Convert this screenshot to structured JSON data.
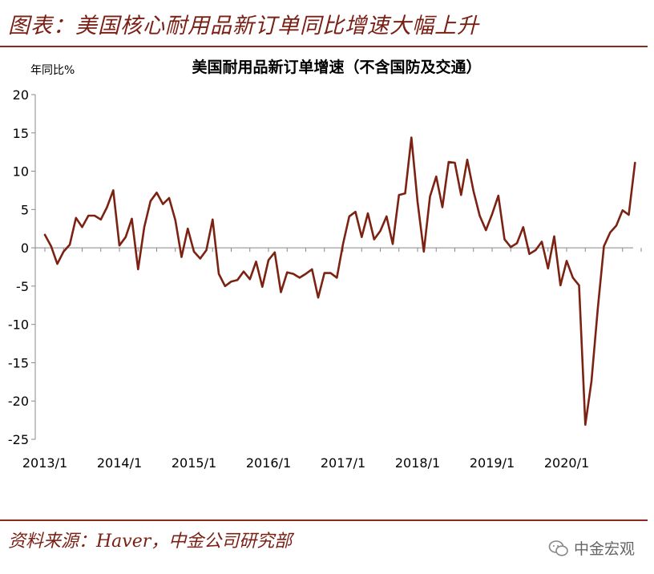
{
  "figure_title": "图表：美国核心耐用品新订单同比增速大幅上升",
  "source": "资料来源：Haver，中金公司研究部",
  "watermark": "中金宏观",
  "colors": {
    "line": "#7b2213",
    "accent": "#8b2a1e"
  },
  "chart_data": {
    "type": "line",
    "title": "美国耐用品新订单增速（不含国防及交通）",
    "ylabel": "年同比%",
    "xlabel": "",
    "ylim": [
      -25,
      20
    ],
    "yticks": [
      20,
      15,
      10,
      5,
      0,
      -5,
      -10,
      -15,
      -20,
      -25
    ],
    "xtick_labels": [
      "2013/1",
      "2014/1",
      "2015/1",
      "2016/1",
      "2017/1",
      "2018/1",
      "2019/1",
      "2020/1"
    ],
    "grid": false,
    "series": [
      {
        "start": "2013/1",
        "frequency": "monthly",
        "values": [
          1.7,
          0.2,
          -2.1,
          -0.5,
          0.4,
          3.9,
          2.7,
          4.2,
          4.2,
          3.7,
          5.3,
          7.5,
          0.3,
          1.4,
          3.8,
          -2.8,
          2.7,
          6.1,
          7.2,
          5.7,
          6.5,
          3.6,
          -1.2,
          2.5,
          -0.5,
          -1.4,
          -0.3,
          3.7,
          -3.4,
          -5.0,
          -4.4,
          -4.2,
          -3.1,
          -4.1,
          -1.8,
          -5.1,
          -1.6,
          -0.6,
          -5.8,
          -3.2,
          -3.4,
          -3.9,
          -3.4,
          -2.8,
          -6.5,
          -3.3,
          -3.3,
          -3.9,
          0.5,
          4.1,
          4.7,
          1.4,
          4.5,
          1.1,
          2.2,
          4.1,
          0.5,
          6.9,
          7.1,
          14.4,
          6.0,
          -0.5,
          6.7,
          9.3,
          5.3,
          11.2,
          11.1,
          6.9,
          11.5,
          7.4,
          4.2,
          2.3,
          4.4,
          6.8,
          1.1,
          0.1,
          0.6,
          2.7,
          -0.8,
          -0.3,
          0.8,
          -2.7,
          1.5,
          -4.9,
          -1.7,
          -3.9,
          -4.9,
          -23.1,
          -17.4,
          -8.0,
          0.2,
          2.0,
          2.9,
          4.9,
          4.3,
          11.1
        ]
      }
    ]
  }
}
